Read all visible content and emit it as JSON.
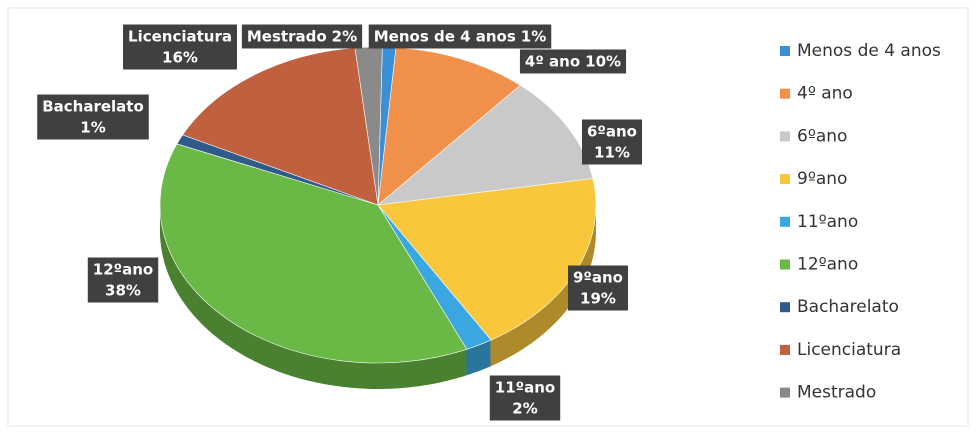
{
  "chart_data": {
    "type": "pie",
    "categories": [
      "Menos de 4 anos",
      "4º ano",
      "6ºano",
      "9ºano",
      "11ºano",
      "12ºano",
      "Bacharelato",
      "Licenciatura",
      "Mestrado"
    ],
    "values": [
      1,
      10,
      11,
      19,
      2,
      38,
      1,
      16,
      2
    ],
    "value_labels": [
      "1%",
      "10%",
      "11%",
      "19%",
      "2%",
      "38%",
      "1%",
      "16%",
      "2%"
    ],
    "colors": [
      "#3a8fd6",
      "#f0904a",
      "#c9c9c9",
      "#f9c73c",
      "#3ba7e0",
      "#6ab845",
      "#2f5a8a",
      "#c0603f",
      "#8a8a8a"
    ],
    "legend": "right"
  }
}
